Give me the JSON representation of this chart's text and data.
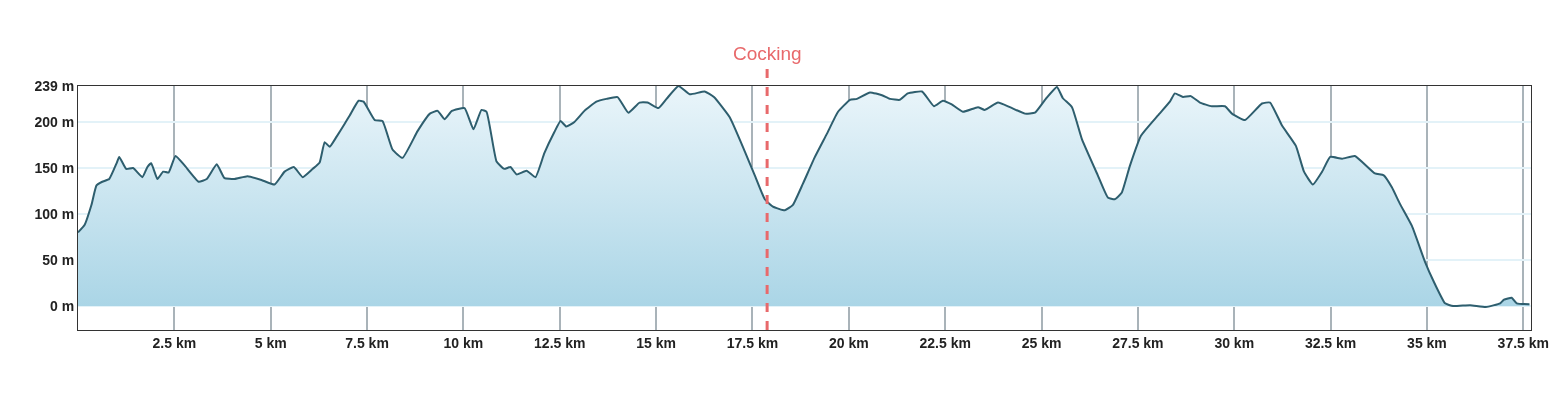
{
  "chart_data": {
    "type": "area",
    "x": [
      0,
      0.17,
      0.35,
      0.48,
      0.63,
      0.81,
      1.0,
      1.07,
      1.25,
      1.43,
      1.67,
      1.8,
      1.9,
      2.06,
      2.21,
      2.35,
      2.53,
      2.76,
      3.13,
      3.34,
      3.6,
      3.8,
      4.06,
      4.4,
      4.76,
      5.1,
      5.36,
      5.6,
      5.83,
      6.09,
      6.27,
      6.4,
      6.53,
      6.71,
      6.92,
      7.05,
      7.28,
      7.41,
      7.7,
      7.9,
      8.16,
      8.42,
      8.81,
      9.13,
      9.33,
      9.51,
      9.7,
      10.03,
      10.26,
      10.47,
      10.6,
      10.86,
      11.06,
      11.22,
      11.38,
      11.64,
      11.87,
      12.1,
      12.36,
      12.52,
      12.67,
      12.88,
      13.14,
      13.45,
      13.71,
      14.0,
      14.28,
      14.57,
      14.78,
      15.06,
      15.27,
      15.58,
      15.87,
      16.26,
      16.5,
      16.91,
      17.3,
      17.56,
      17.82,
      18.03,
      18.34,
      18.55,
      18.81,
      19.12,
      19.43,
      19.72,
      20.03,
      20.21,
      20.55,
      20.86,
      21.07,
      21.32,
      21.53,
      21.9,
      22.21,
      22.44,
      22.67,
      22.96,
      23.35,
      23.53,
      23.87,
      24.18,
      24.57,
      24.83,
      25.11,
      25.4,
      25.55,
      25.79,
      26.05,
      26.46,
      26.72,
      26.9,
      27.08,
      27.29,
      27.58,
      28.02,
      28.33,
      28.46,
      28.67,
      28.87,
      29.11,
      29.42,
      29.76,
      29.94,
      30.28,
      30.72,
      30.93,
      31.24,
      31.6,
      31.81,
      32.04,
      32.28,
      32.49,
      32.8,
      33.13,
      33.65,
      33.88,
      34.09,
      34.3,
      34.61,
      34.95,
      35.16,
      35.47,
      35.68,
      36.12,
      36.53,
      36.9,
      37.0,
      37.2,
      37.33,
      37.66
    ],
    "series": [
      {
        "color": "#2e5e6e",
        "values": [
          80,
          88,
          110,
          131,
          135,
          138,
          155,
          162,
          149,
          150,
          140,
          151,
          155,
          138,
          146,
          145,
          163,
          153,
          135,
          138,
          154,
          139,
          138,
          141,
          137,
          132,
          146,
          151,
          140,
          149,
          156,
          178,
          173,
          184,
          198,
          207,
          223,
          222,
          202,
          201,
          170,
          161,
          190,
          209,
          212,
          203,
          212,
          215,
          192,
          213,
          211,
          157,
          149,
          151,
          143,
          147,
          140,
          166,
          189,
          201,
          195,
          200,
          212,
          222,
          225,
          227,
          210,
          221,
          221,
          215,
          225,
          239,
          230,
          233,
          227,
          205,
          168,
          142,
          116,
          108,
          104,
          110,
          133,
          162,
          187,
          211,
          224,
          225,
          232,
          229,
          225,
          224,
          231,
          233,
          217,
          223,
          219,
          211,
          216,
          213,
          221,
          216,
          209,
          210,
          225,
          238,
          226,
          216,
          181,
          142,
          118,
          116,
          123,
          152,
          185,
          207,
          222,
          231,
          227,
          228,
          221,
          217,
          217,
          209,
          202,
          220,
          221,
          196,
          174,
          146,
          132,
          146,
          162,
          160,
          163,
          144,
          142,
          129,
          111,
          87,
          48,
          28,
          3,
          0,
          1,
          -1,
          3,
          7,
          9,
          3,
          2
        ]
      }
    ],
    "xlim": [
      0,
      37.7
    ],
    "ylim": [
      -26,
      239
    ],
    "xticks": [
      {
        "value": 2.5,
        "label": "2.5 km"
      },
      {
        "value": 5,
        "label": "5 km"
      },
      {
        "value": 7.5,
        "label": "7.5 km"
      },
      {
        "value": 10,
        "label": "10 km"
      },
      {
        "value": 12.5,
        "label": "12.5 km"
      },
      {
        "value": 15,
        "label": "15 km"
      },
      {
        "value": 17.5,
        "label": "17.5 km"
      },
      {
        "value": 20,
        "label": "20 km"
      },
      {
        "value": 22.5,
        "label": "22.5 km"
      },
      {
        "value": 25,
        "label": "25 km"
      },
      {
        "value": 27.5,
        "label": "27.5 km"
      },
      {
        "value": 30,
        "label": "30 km"
      },
      {
        "value": 32.5,
        "label": "32.5 km"
      },
      {
        "value": 35,
        "label": "35 km"
      },
      {
        "value": 37.5,
        "label": "37.5 km"
      }
    ],
    "yticks": [
      {
        "value": 0,
        "label": "0 m"
      },
      {
        "value": 50,
        "label": "50 m"
      },
      {
        "value": 100,
        "label": "100 m"
      },
      {
        "value": 150,
        "label": "150 m"
      },
      {
        "value": 200,
        "label": "200 m"
      },
      {
        "value": 239,
        "label": "239 m"
      }
    ],
    "ref_lines": [
      {
        "axis": "x",
        "value": 17.88,
        "label": "Cocking",
        "color": "#e8696b",
        "line_style": "dashed"
      }
    ],
    "grid": true
  }
}
